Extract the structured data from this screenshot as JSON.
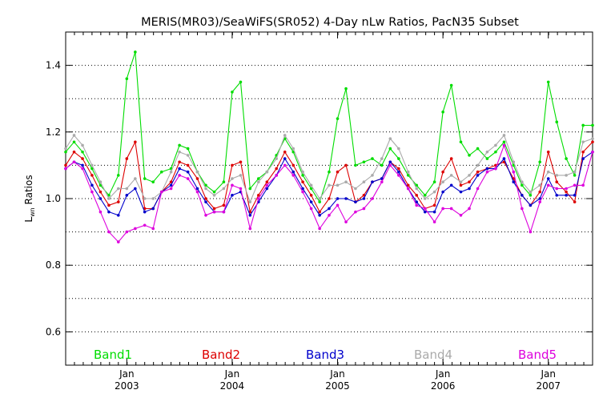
{
  "chart_data": {
    "type": "line",
    "title": "MERIS(MR03)/SeaWiFS(SR052) 4-Day nLw Ratios, PacN35 Subset",
    "ylabel_main": "L",
    "ylabel_sub": "wn",
    "ylabel_rest": " Ratios",
    "xlim": [
      2002.42,
      2007.42
    ],
    "ylim": [
      0.5,
      1.5
    ],
    "yticks": [
      0.6,
      0.8,
      1.0,
      1.2,
      1.4
    ],
    "ytick_labels": [
      "0.6",
      "0.8",
      "1.0",
      "1.2",
      "1.4"
    ],
    "ygrid": [
      0.6,
      0.7,
      0.8,
      0.9,
      1.0,
      1.1,
      1.2,
      1.3,
      1.4
    ],
    "grid": "horizontal-dotted",
    "xticks": [
      {
        "x": 2003.0,
        "month": "Jan",
        "year": "2003"
      },
      {
        "x": 2004.0,
        "month": "Jan",
        "year": "2004"
      },
      {
        "x": 2005.0,
        "month": "Jan",
        "year": "2005"
      },
      {
        "x": 2006.0,
        "month": "Jan",
        "year": "2006"
      },
      {
        "x": 2007.0,
        "month": "Jan",
        "year": "2007"
      }
    ],
    "legend_placement": "bottom",
    "x": [
      2002.42,
      2002.5,
      2002.58,
      2002.67,
      2002.75,
      2002.83,
      2002.92,
      2003.0,
      2003.08,
      2003.17,
      2003.25,
      2003.33,
      2003.42,
      2003.5,
      2003.58,
      2003.67,
      2003.75,
      2003.83,
      2003.92,
      2004.0,
      2004.08,
      2004.17,
      2004.25,
      2004.33,
      2004.42,
      2004.5,
      2004.58,
      2004.67,
      2004.75,
      2004.83,
      2004.92,
      2005.0,
      2005.08,
      2005.17,
      2005.25,
      2005.33,
      2005.42,
      2005.5,
      2005.58,
      2005.67,
      2005.75,
      2005.83,
      2005.92,
      2006.0,
      2006.08,
      2006.17,
      2006.25,
      2006.33,
      2006.42,
      2006.5,
      2006.58,
      2006.67,
      2006.75,
      2006.83,
      2006.92,
      2007.0,
      2007.08,
      2007.17,
      2007.25,
      2007.33,
      2007.42
    ],
    "series": [
      {
        "name": "Band1",
        "color": "#00dd00",
        "values": [
          1.14,
          1.17,
          1.14,
          1.09,
          1.04,
          1.01,
          1.07,
          1.36,
          1.44,
          1.06,
          1.05,
          1.08,
          1.09,
          1.16,
          1.15,
          1.08,
          1.04,
          1.02,
          1.05,
          1.32,
          1.35,
          1.03,
          1.06,
          1.08,
          1.13,
          1.18,
          1.14,
          1.07,
          1.03,
          0.99,
          1.08,
          1.24,
          1.33,
          1.1,
          1.11,
          1.12,
          1.1,
          1.15,
          1.12,
          1.07,
          1.04,
          1.01,
          1.05,
          1.26,
          1.34,
          1.17,
          1.13,
          1.15,
          1.12,
          1.14,
          1.17,
          1.1,
          1.04,
          1.01,
          1.11,
          1.35,
          1.23,
          1.12,
          1.07,
          1.22,
          1.22
        ]
      },
      {
        "name": "Band2",
        "color": "#dd0000",
        "values": [
          1.1,
          1.14,
          1.12,
          1.07,
          1.02,
          0.98,
          0.99,
          1.12,
          1.17,
          0.97,
          0.97,
          1.02,
          1.05,
          1.11,
          1.1,
          1.06,
          1.0,
          0.97,
          0.98,
          1.1,
          1.11,
          0.96,
          1.01,
          1.05,
          1.09,
          1.14,
          1.1,
          1.05,
          1.01,
          0.96,
          1.0,
          1.08,
          1.1,
          0.99,
          1.01,
          1.05,
          1.06,
          1.11,
          1.09,
          1.04,
          1.01,
          0.97,
          0.98,
          1.08,
          1.12,
          1.04,
          1.05,
          1.08,
          1.09,
          1.1,
          1.11,
          1.06,
          1.01,
          0.98,
          1.02,
          1.14,
          1.05,
          1.02,
          0.99,
          1.14,
          1.17
        ]
      },
      {
        "name": "Band3",
        "color": "#0000cc",
        "values": [
          1.09,
          1.11,
          1.1,
          1.04,
          1.0,
          0.96,
          0.95,
          1.01,
          1.03,
          0.96,
          0.97,
          1.02,
          1.04,
          1.09,
          1.08,
          1.03,
          0.99,
          0.96,
          0.96,
          1.01,
          1.02,
          0.95,
          0.99,
          1.03,
          1.07,
          1.12,
          1.08,
          1.03,
          0.99,
          0.95,
          0.97,
          1.0,
          1.0,
          0.99,
          1.0,
          1.05,
          1.06,
          1.11,
          1.08,
          1.03,
          0.99,
          0.96,
          0.96,
          1.02,
          1.04,
          1.02,
          1.03,
          1.07,
          1.09,
          1.09,
          1.12,
          1.05,
          1.01,
          0.98,
          1.0,
          1.06,
          1.01,
          1.01,
          1.01,
          1.12,
          1.14
        ]
      },
      {
        "name": "Band4",
        "color": "#aaaaaa",
        "values": [
          1.15,
          1.19,
          1.16,
          1.1,
          1.05,
          1.0,
          1.03,
          1.03,
          1.06,
          1.0,
          1.0,
          1.02,
          1.08,
          1.14,
          1.13,
          1.08,
          1.03,
          1.01,
          1.03,
          1.06,
          1.07,
          0.99,
          1.05,
          1.08,
          1.12,
          1.19,
          1.15,
          1.08,
          1.04,
          1.0,
          1.04,
          1.04,
          1.05,
          1.03,
          1.05,
          1.07,
          1.12,
          1.18,
          1.15,
          1.08,
          1.03,
          1.0,
          1.02,
          1.05,
          1.07,
          1.05,
          1.07,
          1.1,
          1.14,
          1.16,
          1.19,
          1.11,
          1.05,
          1.02,
          1.04,
          1.08,
          1.07,
          1.07,
          1.08,
          1.17,
          1.18
        ]
      },
      {
        "name": "Band5",
        "color": "#dd00dd",
        "values": [
          1.09,
          1.11,
          1.09,
          1.02,
          0.96,
          0.9,
          0.87,
          0.9,
          0.91,
          0.92,
          0.91,
          1.02,
          1.03,
          1.07,
          1.06,
          1.02,
          0.95,
          0.96,
          0.96,
          1.04,
          1.03,
          0.91,
          1.0,
          1.04,
          1.07,
          1.1,
          1.07,
          1.02,
          0.97,
          0.91,
          0.95,
          0.98,
          0.93,
          0.96,
          0.97,
          1.0,
          1.05,
          1.1,
          1.07,
          1.03,
          0.98,
          0.97,
          0.93,
          0.97,
          0.97,
          0.95,
          0.97,
          1.03,
          1.08,
          1.09,
          1.16,
          1.08,
          0.97,
          0.9,
          0.99,
          1.04,
          1.03,
          1.03,
          1.04,
          1.04,
          1.14
        ]
      }
    ]
  }
}
